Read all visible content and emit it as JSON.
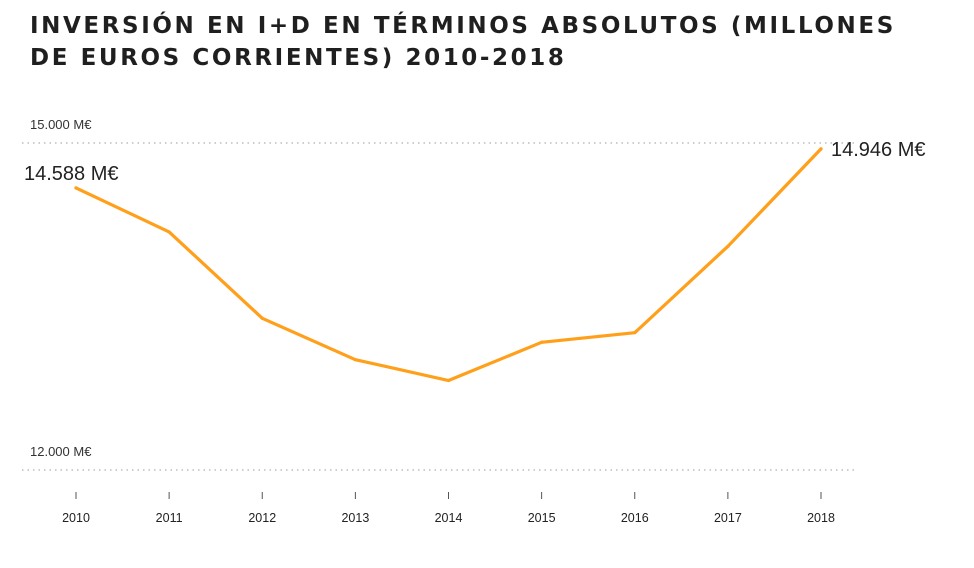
{
  "title": "INVERSIÓN EN I+D EN TÉRMINOS ABSOLUTOS (MILLONES DE EUROS CORRIENTES) 2010-2018",
  "colors": {
    "line": "#FF9F1A",
    "grid": "#BDBDBD",
    "text": "#222222"
  },
  "chart_data": {
    "type": "line",
    "title": "INVERSIÓN EN I+D EN TÉRMINOS ABSOLUTOS (MILLONES DE EUROS CORRIENTES) 2010-2018",
    "xlabel": "",
    "ylabel": "",
    "x": [
      "2010",
      "2011",
      "2012",
      "2013",
      "2014",
      "2015",
      "2016",
      "2017",
      "2018"
    ],
    "series": [
      {
        "values": [
          14588,
          14184,
          13392,
          13012,
          12821,
          13172,
          13260,
          14052,
          14946
        ]
      }
    ],
    "ylim": [
      12000,
      15000
    ],
    "gridlines": [
      {
        "value": 15000,
        "label": "15.000 M€"
      },
      {
        "value": 12000,
        "label": "12.000 M€"
      }
    ],
    "annotations": [
      {
        "x": "2010",
        "label": "14.588 M€"
      },
      {
        "x": "2018",
        "label": "14.946 M€"
      }
    ],
    "grid": "dotted horizontal at labeled values",
    "legend": "none"
  }
}
